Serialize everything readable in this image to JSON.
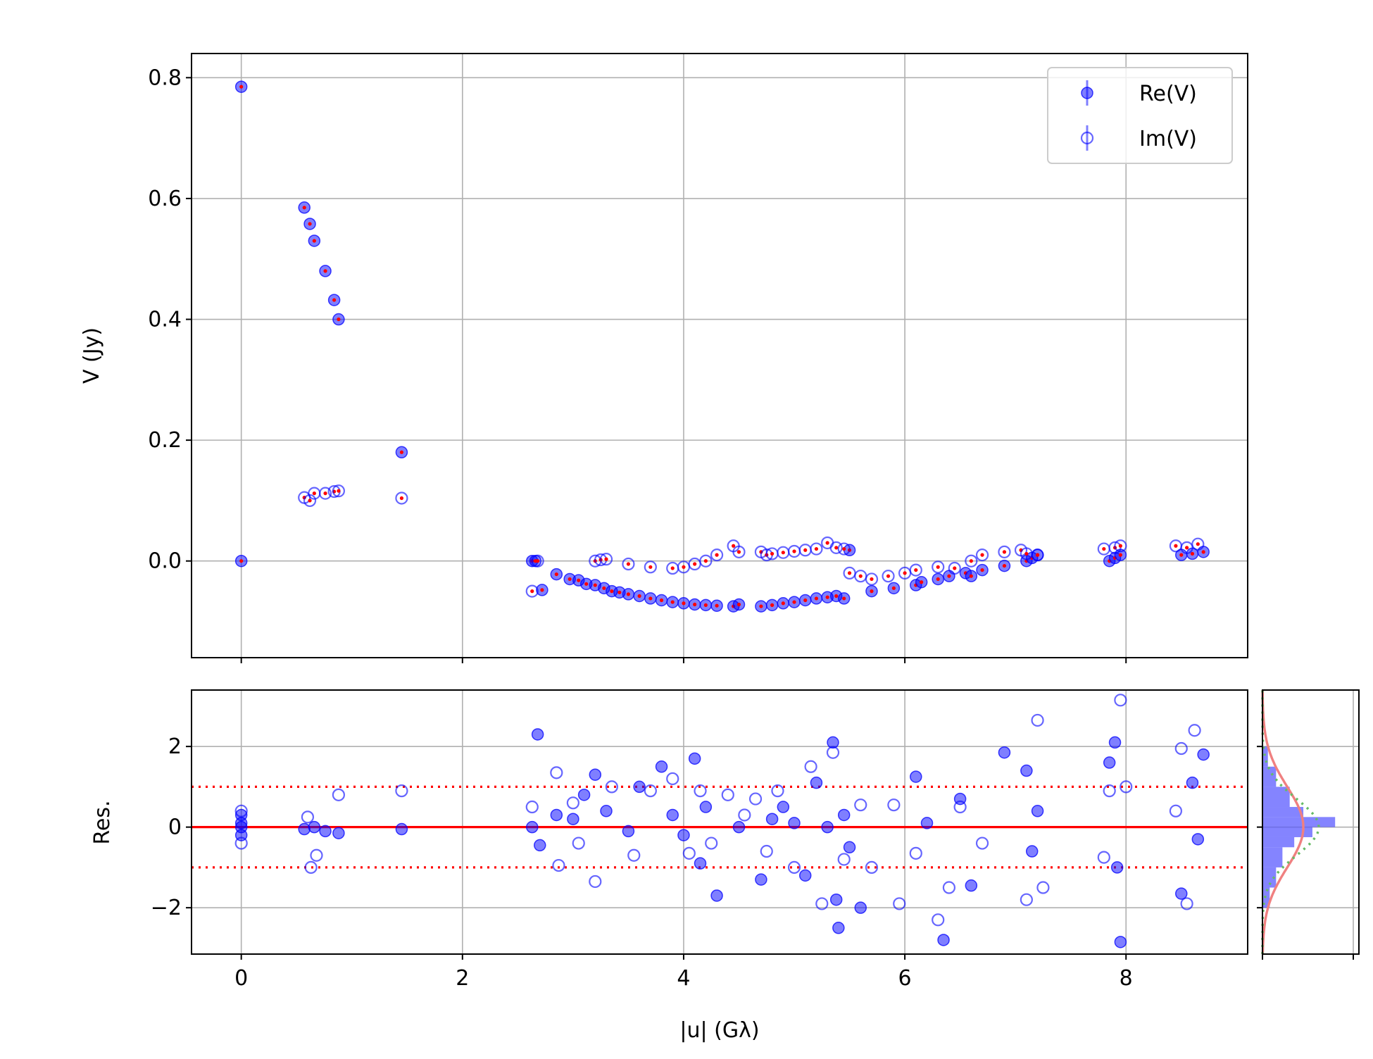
{
  "chart_data": [
    {
      "type": "scatter",
      "panel": "visibility",
      "ylabel": "V (Jy)",
      "xlim": [
        -0.45,
        9.1
      ],
      "ylim": [
        -0.16,
        0.84
      ],
      "xticks": [
        0,
        2,
        4,
        6,
        8
      ],
      "yticks": [
        {
          "value": 0.8,
          "label": "0.8"
        },
        {
          "value": 0.6,
          "label": "0.6"
        },
        {
          "value": 0.4,
          "label": "0.4"
        },
        {
          "value": 0.2,
          "label": "0.2"
        },
        {
          "value": 0.0,
          "label": "0.0"
        }
      ],
      "grid": true,
      "legend": {
        "position": "top-right",
        "entries": [
          {
            "label": "Re(V)",
            "marker": "filled-circle",
            "color": "#0000ff"
          },
          {
            "label": "Im(V)",
            "marker": "open-circle",
            "color": "#0000ff"
          }
        ]
      },
      "series": [
        {
          "name": "Re(V)",
          "color": "#0000ff",
          "marker": "filled-circle",
          "x": [
            0.0,
            0.0,
            0.57,
            0.62,
            0.66,
            0.76,
            0.84,
            0.88,
            1.45,
            2.63,
            2.66,
            2.72,
            2.85,
            2.97,
            3.05,
            3.12,
            3.2,
            3.28,
            3.35,
            3.42,
            3.5,
            3.6,
            3.7,
            3.8,
            3.9,
            4.0,
            4.1,
            4.2,
            4.3,
            4.45,
            4.5,
            4.7,
            4.8,
            4.9,
            5.0,
            5.1,
            5.2,
            5.3,
            5.38,
            5.45,
            5.5,
            5.7,
            5.9,
            6.1,
            6.15,
            6.3,
            6.4,
            6.55,
            6.6,
            6.7,
            6.9,
            7.1,
            7.15,
            7.2,
            7.85,
            7.9,
            7.95,
            8.5,
            8.6,
            8.7
          ],
          "y": [
            0.785,
            0.0,
            0.585,
            0.558,
            0.53,
            0.48,
            0.432,
            0.4,
            0.18,
            0.0,
            0.0,
            -0.048,
            -0.022,
            -0.03,
            -0.032,
            -0.038,
            -0.04,
            -0.045,
            -0.05,
            -0.052,
            -0.055,
            -0.058,
            -0.062,
            -0.065,
            -0.068,
            -0.07,
            -0.072,
            -0.073,
            -0.074,
            -0.075,
            -0.072,
            -0.075,
            -0.073,
            -0.07,
            -0.068,
            -0.065,
            -0.062,
            -0.06,
            -0.058,
            -0.062,
            0.018,
            -0.05,
            -0.045,
            -0.04,
            -0.035,
            -0.03,
            -0.025,
            -0.02,
            -0.025,
            -0.015,
            -0.008,
            0.0,
            0.005,
            0.01,
            0.0,
            0.005,
            0.01,
            0.01,
            0.012,
            0.015
          ]
        },
        {
          "name": "Im(V)",
          "color": "#0000ff",
          "marker": "open-circle",
          "x": [
            0.57,
            0.62,
            0.66,
            0.76,
            0.84,
            0.88,
            1.45,
            2.63,
            2.68,
            3.2,
            3.25,
            3.3,
            3.5,
            3.7,
            3.9,
            4.0,
            4.1,
            4.2,
            4.3,
            4.45,
            4.5,
            4.7,
            4.75,
            4.8,
            4.9,
            5.0,
            5.1,
            5.2,
            5.3,
            5.38,
            5.45,
            5.5,
            5.6,
            5.7,
            5.85,
            6.0,
            6.1,
            6.3,
            6.45,
            6.6,
            6.7,
            6.9,
            7.05,
            7.1,
            7.2,
            7.8,
            7.9,
            7.95,
            8.45,
            8.55,
            8.65
          ],
          "y": [
            0.105,
            0.1,
            0.112,
            0.112,
            0.115,
            0.116,
            0.104,
            -0.05,
            0.0,
            0.0,
            0.002,
            0.003,
            -0.005,
            -0.01,
            -0.012,
            -0.01,
            -0.005,
            0.0,
            0.01,
            0.025,
            0.015,
            0.015,
            0.01,
            0.012,
            0.014,
            0.016,
            0.018,
            0.02,
            0.03,
            0.022,
            0.02,
            -0.02,
            -0.025,
            -0.03,
            -0.025,
            -0.02,
            -0.015,
            -0.01,
            -0.012,
            0.0,
            0.01,
            0.015,
            0.018,
            0.012,
            0.01,
            0.02,
            0.022,
            0.025,
            0.025,
            0.022,
            0.028
          ]
        }
      ]
    },
    {
      "type": "scatter",
      "panel": "residuals",
      "xlabel": "|u| (Gλ)",
      "ylabel": "Res.",
      "xlim": [
        -0.45,
        9.1
      ],
      "ylim": [
        -3.15,
        3.4
      ],
      "xticks": [
        {
          "value": 0,
          "label": "0"
        },
        {
          "value": 2,
          "label": "2"
        },
        {
          "value": 4,
          "label": "4"
        },
        {
          "value": 6,
          "label": "6"
        },
        {
          "value": 8,
          "label": "8"
        }
      ],
      "yticks": [
        {
          "value": 2,
          "label": "2"
        },
        {
          "value": 0,
          "label": "0"
        },
        {
          "value": -2,
          "label": "−2"
        }
      ],
      "grid": true,
      "reference_lines": [
        {
          "y": 0,
          "style": "solid",
          "color": "#ff0000"
        },
        {
          "y": 1,
          "style": "dotted",
          "color": "#ff0000"
        },
        {
          "y": -1,
          "style": "dotted",
          "color": "#ff0000"
        }
      ],
      "series": [
        {
          "name": "Re(V)",
          "color": "#0000ff",
          "marker": "filled-circle",
          "x": [
            0.0,
            0.0,
            0.0,
            0.0,
            0.57,
            0.66,
            0.76,
            0.88,
            1.45,
            2.63,
            2.68,
            2.7,
            2.85,
            3.0,
            3.1,
            3.2,
            3.3,
            3.5,
            3.6,
            3.8,
            3.9,
            4.0,
            4.1,
            4.15,
            4.2,
            4.3,
            4.5,
            4.7,
            4.8,
            4.9,
            5.0,
            5.1,
            5.2,
            5.3,
            5.35,
            5.38,
            5.4,
            5.45,
            5.5,
            5.6,
            6.1,
            6.2,
            6.35,
            6.5,
            6.6,
            6.9,
            7.1,
            7.15,
            7.2,
            7.85,
            7.9,
            7.92,
            7.95,
            8.5,
            8.6,
            8.65,
            8.7
          ],
          "y": [
            0.3,
            0.1,
            0.0,
            -0.2,
            -0.05,
            0.0,
            -0.1,
            -0.15,
            -0.05,
            0.0,
            2.3,
            -0.45,
            0.3,
            0.2,
            0.8,
            1.3,
            0.4,
            -0.1,
            1.0,
            1.5,
            0.3,
            -0.2,
            1.7,
            -0.9,
            0.5,
            -1.7,
            0.0,
            -1.3,
            0.2,
            0.5,
            0.1,
            -1.2,
            1.1,
            0.0,
            2.1,
            -1.8,
            -2.5,
            0.3,
            -0.5,
            -2.0,
            1.25,
            0.1,
            -2.8,
            0.7,
            -1.45,
            1.85,
            1.4,
            -0.6,
            0.4,
            1.6,
            2.1,
            -1.0,
            -2.85,
            -1.65,
            1.1,
            -0.3,
            1.8
          ]
        },
        {
          "name": "Im(V)",
          "color": "#0000ff",
          "marker": "open-circle",
          "x": [
            0.0,
            0.0,
            0.6,
            0.63,
            0.68,
            0.88,
            1.45,
            2.63,
            2.85,
            2.87,
            3.0,
            3.05,
            3.2,
            3.35,
            3.55,
            3.7,
            3.9,
            4.05,
            4.15,
            4.25,
            4.4,
            4.55,
            4.65,
            4.75,
            4.85,
            5.0,
            5.15,
            5.25,
            5.35,
            5.45,
            5.6,
            5.7,
            5.9,
            5.95,
            6.1,
            6.3,
            6.4,
            6.5,
            6.7,
            7.1,
            7.2,
            7.25,
            7.8,
            7.85,
            7.95,
            8.0,
            8.45,
            8.5,
            8.55,
            8.62
          ],
          "y": [
            -0.4,
            0.4,
            0.25,
            -1.0,
            -0.7,
            0.8,
            0.9,
            0.5,
            1.35,
            -0.95,
            0.6,
            -0.4,
            -1.35,
            1.0,
            -0.7,
            0.9,
            1.2,
            -0.65,
            0.9,
            -0.4,
            0.8,
            0.3,
            0.7,
            -0.6,
            0.9,
            -1.0,
            1.5,
            -1.9,
            1.85,
            -0.8,
            0.55,
            -1.0,
            0.55,
            -1.9,
            -0.65,
            -2.3,
            -1.5,
            0.5,
            -0.4,
            -1.8,
            2.65,
            -1.5,
            -0.75,
            0.9,
            3.15,
            1.0,
            0.4,
            1.95,
            -1.9,
            2.4
          ]
        }
      ]
    },
    {
      "type": "histogram",
      "panel": "residual-distribution",
      "orientation": "horizontal",
      "ylim": [
        -3.15,
        3.4
      ],
      "bins": [
        {
          "y0": -2.0,
          "y1": -1.5,
          "count": 0.08
        },
        {
          "y0": -1.5,
          "y1": -1.0,
          "count": 0.15
        },
        {
          "y0": -1.0,
          "y1": -0.5,
          "count": 0.22
        },
        {
          "y0": -0.5,
          "y1": -0.25,
          "count": 0.35
        },
        {
          "y0": -0.25,
          "y1": 0.0,
          "count": 0.55
        },
        {
          "y0": 0.0,
          "y1": 0.25,
          "count": 0.8
        },
        {
          "y0": 0.25,
          "y1": 0.5,
          "count": 0.45
        },
        {
          "y0": 0.5,
          "y1": 1.0,
          "count": 0.3
        },
        {
          "y0": 1.0,
          "y1": 1.5,
          "count": 0.15
        },
        {
          "y0": 1.5,
          "y1": 2.0,
          "count": 0.06
        }
      ],
      "curves": [
        {
          "style": "solid",
          "color": "#f08080",
          "sigma": 1.0,
          "amplitude": 0.45
        },
        {
          "style": "dotted",
          "color": "#66bb66",
          "sigma": 0.7,
          "amplitude": 0.62
        }
      ]
    }
  ]
}
